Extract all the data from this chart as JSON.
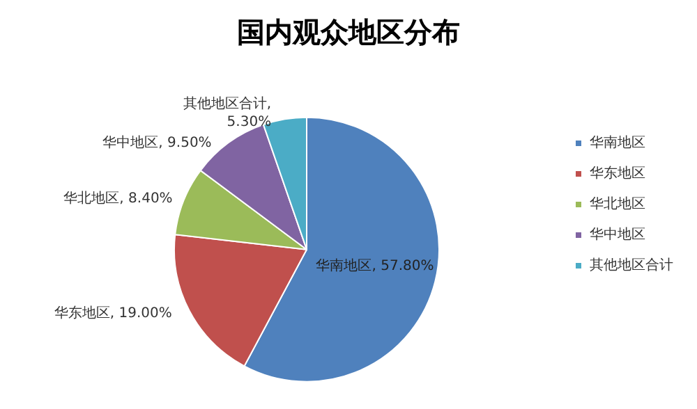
{
  "chart_data": {
    "type": "pie",
    "title": "国内观众地区分布",
    "categories": [
      "华南地区",
      "华东地区",
      "华北地区",
      "华中地区",
      "其他地区合计"
    ],
    "values": [
      57.8,
      19.0,
      8.4,
      9.5,
      5.3
    ],
    "value_labels": [
      "华南地区, 57.80%",
      "华东地区, 19.00%",
      "华北地区, 8.40%",
      "华中地区, 9.50%",
      "其他地区合计,\n5.30%"
    ],
    "colors": [
      "#4f81bd",
      "#c0504d",
      "#9bbb59",
      "#8064a2",
      "#4bacc6"
    ],
    "legend": "right"
  }
}
